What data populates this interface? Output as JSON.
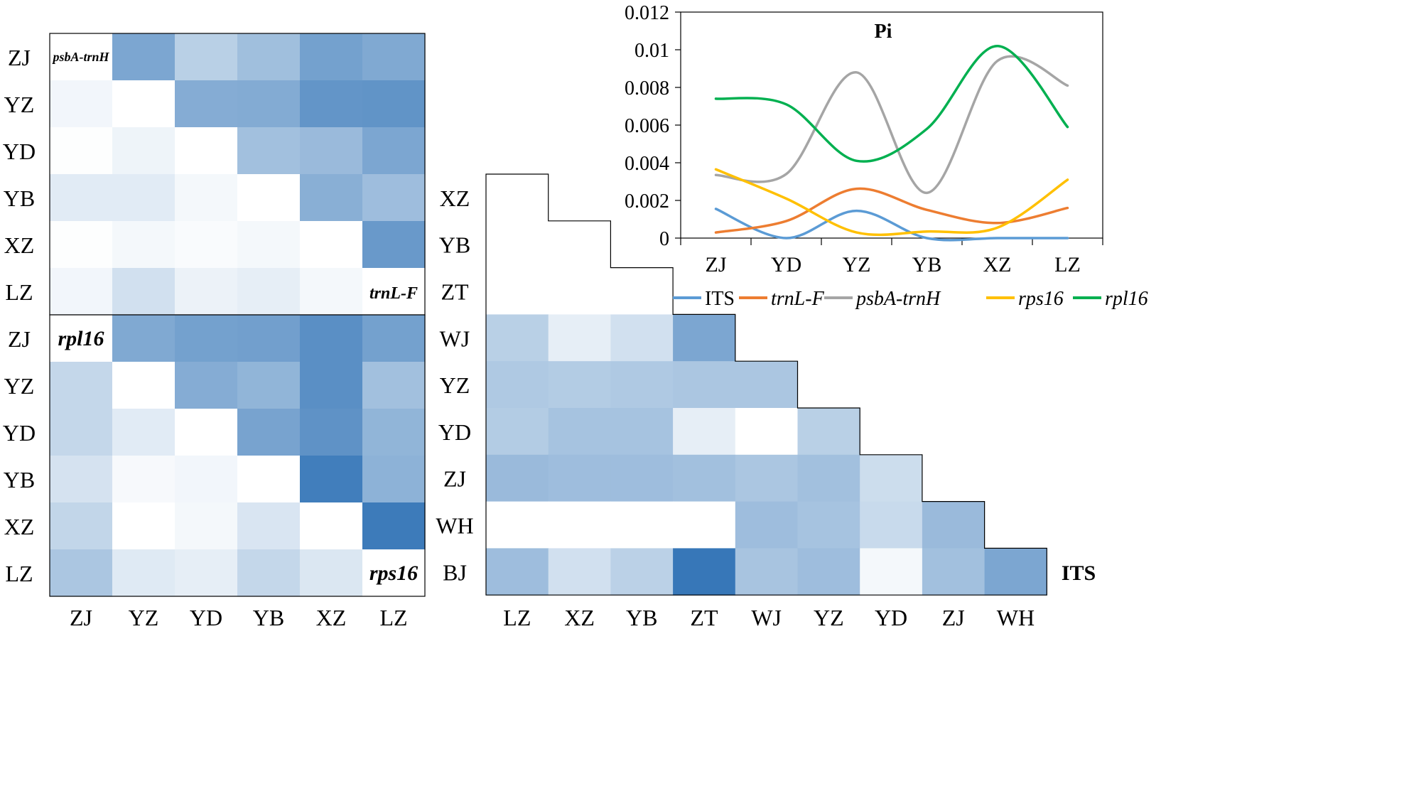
{
  "chart_data": [
    {
      "type": "heatmap",
      "title": "psbA-trnH / trnL-F",
      "upper_label": "psbA-trnH",
      "lower_label": "trnL-F",
      "rows": [
        "ZJ",
        "YZ",
        "YD",
        "YB",
        "XZ",
        "LZ"
      ],
      "cols": [
        "ZJ",
        "YZ",
        "YD",
        "YB",
        "XZ",
        "LZ"
      ],
      "values": [
        [
          null,
          0.62,
          0.33,
          0.45,
          0.66,
          0.6
        ],
        [
          0.06,
          null,
          0.58,
          0.59,
          0.74,
          0.75
        ],
        [
          0.01,
          0.08,
          null,
          0.44,
          0.48,
          0.62
        ],
        [
          0.14,
          0.14,
          0.05,
          null,
          0.56,
          0.46
        ],
        [
          0.01,
          0.05,
          0.03,
          0.05,
          null,
          0.71
        ],
        [
          0.06,
          0.22,
          0.09,
          0.12,
          0.05,
          null
        ]
      ]
    },
    {
      "type": "heatmap",
      "title": "rpl16 / rps16",
      "upper_label": "rpl16",
      "lower_label": "rps16",
      "rows": [
        "ZJ",
        "YZ",
        "YD",
        "YB",
        "XZ",
        "LZ"
      ],
      "cols": [
        "ZJ",
        "YZ",
        "YD",
        "YB",
        "XZ",
        "LZ"
      ],
      "values": [
        [
          null,
          0.6,
          0.66,
          0.67,
          0.78,
          0.66
        ],
        [
          0.28,
          null,
          0.58,
          0.52,
          0.78,
          0.44
        ],
        [
          0.28,
          0.14,
          null,
          0.64,
          0.76,
          0.52
        ],
        [
          0.2,
          0.04,
          0.06,
          null,
          0.9,
          0.54
        ],
        [
          0.29,
          0.0,
          0.05,
          0.18,
          null,
          0.92
        ],
        [
          0.4,
          0.15,
          0.12,
          0.28,
          0.17,
          null
        ]
      ]
    },
    {
      "type": "heatmap",
      "title": "ITS",
      "label": "ITS",
      "rows": [
        "XZ",
        "YB",
        "ZT",
        "WJ",
        "YZ",
        "YD",
        "ZJ",
        "WH",
        "BJ"
      ],
      "cols": [
        "LZ",
        "XZ",
        "YB",
        "ZT",
        "WJ",
        "YZ",
        "YD",
        "ZJ",
        "WH"
      ],
      "values": [
        [
          0.0
        ],
        [
          0.0,
          0.0
        ],
        [
          0.0,
          0.0,
          0.0
        ],
        [
          0.33,
          0.12,
          0.22,
          0.62
        ],
        [
          0.38,
          0.36,
          0.38,
          0.4,
          0.4
        ],
        [
          0.36,
          0.42,
          0.42,
          0.12,
          0.0,
          0.33
        ],
        [
          0.48,
          0.46,
          0.46,
          0.44,
          0.4,
          0.44,
          0.24
        ],
        [
          0.0,
          0.0,
          0.0,
          0.0,
          0.46,
          0.42,
          0.26,
          0.48
        ],
        [
          0.46,
          0.22,
          0.32,
          0.95,
          0.41,
          0.46,
          0.05,
          0.44,
          0.62
        ]
      ]
    },
    {
      "type": "line",
      "title": "Pi",
      "categories": [
        "ZJ",
        "YD",
        "YZ",
        "YB",
        "XZ",
        "LZ"
      ],
      "ylim": [
        0,
        0.012
      ],
      "yticks": [
        0,
        0.002,
        0.004,
        0.006,
        0.008,
        0.01,
        0.012
      ],
      "ytick_labels": [
        "0",
        "0.002",
        "0.004",
        "0.006",
        "0.008",
        "0.01",
        "0.012"
      ],
      "series": [
        {
          "name": "ITS",
          "color": "#5b9bd5",
          "values": [
            0.00155,
            0.0,
            0.00145,
            0.0,
            0.0,
            0.0
          ]
        },
        {
          "name": "trnL-F",
          "color": "#ed7d31",
          "values": [
            0.0003,
            0.0009,
            0.00262,
            0.0015,
            0.0008,
            0.0016
          ]
        },
        {
          "name": "psbA-trnH",
          "color": "#a5a5a5",
          "values": [
            0.00335,
            0.0034,
            0.0088,
            0.0024,
            0.0094,
            0.0081
          ]
        },
        {
          "name": "rps16",
          "color": "#ffc000",
          "values": [
            0.00365,
            0.0021,
            0.0003,
            0.00035,
            0.00055,
            0.0031
          ]
        },
        {
          "name": "rpl16",
          "color": "#00b050",
          "values": [
            0.0074,
            0.0071,
            0.0041,
            0.0058,
            0.0102,
            0.0059
          ]
        }
      ]
    }
  ]
}
